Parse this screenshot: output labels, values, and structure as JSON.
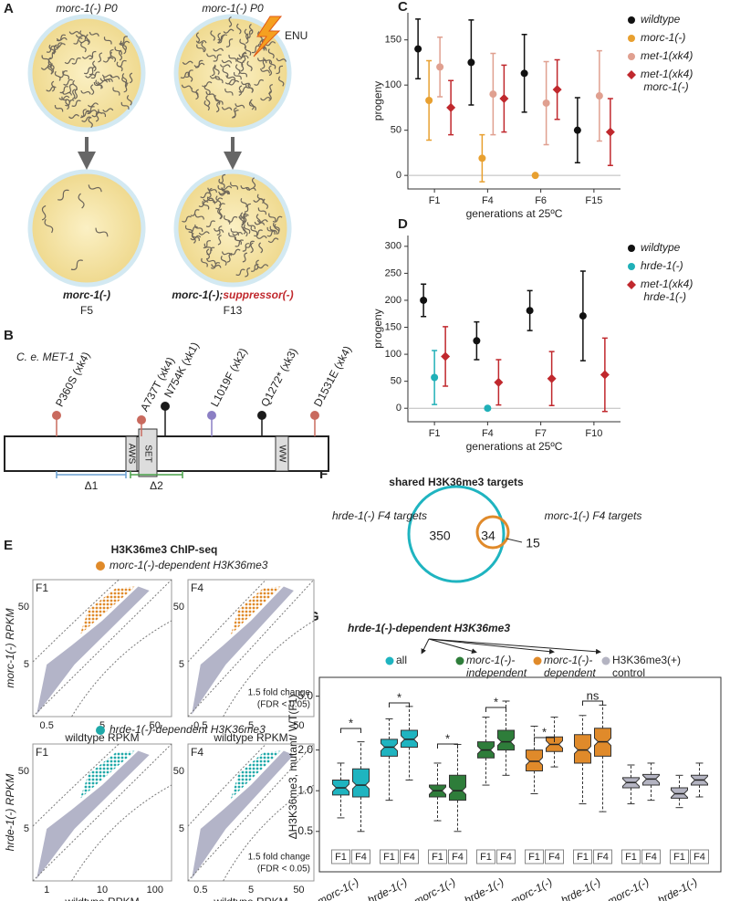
{
  "panel_labels": [
    "A",
    "B",
    "C",
    "D",
    "E",
    "F",
    "G"
  ],
  "panel_a": {
    "left_top": "morc-1(-) P0",
    "right_top": "morc-1(-) P0",
    "mutagen": "ENU",
    "left_bottom": [
      "morc-1(-)",
      "F5"
    ],
    "right_bottom": [
      "morc-1(-);",
      "suppressor(-)",
      "F13"
    ]
  },
  "panel_b": {
    "protein": "C. e. MET-1",
    "mutations": [
      {
        "label": "P360S (xk4)",
        "color": "#c96a5e"
      },
      {
        "label": "A737T (xk4)",
        "color": "#c96a5e"
      },
      {
        "label": "N754K (xk1)",
        "color": "#1a1a1a"
      },
      {
        "label": "L1019F (xk2)",
        "color": "#8b7fc4"
      },
      {
        "label": "Q1272* (xk3)",
        "color": "#1a1a1a"
      },
      {
        "label": "D1531E (xk4)",
        "color": "#c96a5e"
      }
    ],
    "domains": [
      "AWS",
      "SET",
      "WW"
    ],
    "deletions": [
      {
        "label": "Δ1",
        "color": "#6a9fd0"
      },
      {
        "label": "Δ2",
        "color": "#4aa24a"
      }
    ]
  },
  "panel_e": {
    "title": "H3K36me3 ChIP-seq",
    "x_label": "wildtype RPKM",
    "note": [
      "1.5 fold change",
      "(FDR < 0.05)"
    ],
    "rows": [
      {
        "subtitle": "morc-1(-)-dependent H3K36me3",
        "color": "#e08a2a",
        "y_label": "morc-1(-) RPKM",
        "plots": [
          {
            "generation": "F1",
            "xticks": [
              "0.5",
              "5",
              "50"
            ],
            "yticks": [
              "5",
              "50"
            ]
          },
          {
            "generation": "F4",
            "xticks": [
              "0.5",
              "5",
              "50"
            ],
            "yticks": [
              "5",
              "50"
            ]
          }
        ]
      },
      {
        "subtitle": "hrde-1(-)-dependent H3K36me3",
        "color": "#1fa9a9",
        "y_label": "hrde-1(-) RPKM",
        "plots": [
          {
            "generation": "F1",
            "xticks": [
              "1",
              "10",
              "100"
            ],
            "yticks": [
              "5",
              "50"
            ]
          },
          {
            "generation": "F4",
            "xticks": [
              "0.5",
              "5",
              "50"
            ],
            "yticks": [
              "5",
              "50"
            ]
          }
        ]
      }
    ]
  },
  "panel_f": {
    "title": "shared H3K36me3 targets",
    "left": "hrde-1(-) F4 targets",
    "right": "morc-1(-) F4 targets",
    "counts": [
      "350",
      "34",
      "15"
    ]
  },
  "chart_data": [
    {
      "type": "dot",
      "categories": [
        "F1",
        "F4",
        "F6",
        "F15"
      ],
      "x_label": "generations at 25ºC",
      "y_label": "progeny",
      "ylim": [
        -15,
        180
      ],
      "yticks": [
        0,
        50,
        100,
        150
      ],
      "series": [
        {
          "name": "wildtype",
          "color": "#111111",
          "marker": "circle",
          "values": [
            140,
            125,
            113,
            50
          ],
          "errors": [
            33,
            47,
            43,
            36
          ]
        },
        {
          "name": "morc-1(-)",
          "color": "#e8a030",
          "marker": "circle",
          "values": [
            83,
            19,
            0,
            null
          ],
          "errors": [
            44,
            26,
            0,
            null
          ]
        },
        {
          "name": "met-1(xk4)",
          "color": "#e0a090",
          "marker": "circle",
          "values": [
            120,
            90,
            80,
            88
          ],
          "errors": [
            33,
            45,
            46,
            50
          ]
        },
        {
          "name": "met-1(xk4); morc-1(-)",
          "color": "#c0282d",
          "marker": "diamond",
          "values": [
            75,
            85,
            95,
            48
          ],
          "errors": [
            30,
            37,
            33,
            37
          ]
        }
      ]
    },
    {
      "type": "dot",
      "categories": [
        "F1",
        "F4",
        "F7",
        "F10"
      ],
      "x_label": "generations at 25ºC",
      "y_label": "progeny",
      "ylim": [
        -25,
        320
      ],
      "yticks": [
        0,
        50,
        100,
        150,
        200,
        250,
        300
      ],
      "series": [
        {
          "name": "wildtype",
          "color": "#111111",
          "marker": "circle",
          "values": [
            200,
            125,
            181,
            171
          ],
          "errors": [
            30,
            35,
            37,
            83
          ]
        },
        {
          "name": "hrde-1(-)",
          "color": "#20b0b8",
          "marker": "circle",
          "values": [
            57,
            0,
            null,
            null
          ],
          "errors": [
            50,
            0,
            null,
            null
          ]
        },
        {
          "name": "met-1(xk4); hrde-1(-)",
          "color": "#c0282d",
          "marker": "diamond",
          "values": [
            96,
            48,
            55,
            62
          ],
          "errors": [
            55,
            42,
            50,
            68
          ]
        }
      ]
    },
    {
      "type": "box",
      "title": "hrde-1(-)-dependent H3K36me3",
      "y_label": "ΔH3K36me3, mutant/ WT(F1)",
      "yscale": "log",
      "ylim": [
        0.42,
        5.9
      ],
      "yticks": [
        0.5,
        {
          "value": 1,
          "label": "1.0"
        },
        {
          "value": 2,
          "label": "2.0"
        },
        {
          "value": 5,
          "label": "5.0"
        }
      ],
      "categories": [
        "morc-1(-)",
        "hrde-1(-)"
      ],
      "subcategories": [
        "F1",
        "F4"
      ],
      "annotations": [
        "*",
        "*",
        "*",
        "*",
        "*",
        "ns"
      ],
      "series": [
        {
          "name": "all",
          "color": "#1fb4c0",
          "boxes": [
            {
              "low": 0.63,
              "q1": 0.93,
              "median": 1.05,
              "q3": 1.2,
              "high": 1.6
            },
            {
              "low": 0.5,
              "q1": 0.9,
              "median": 1.1,
              "q3": 1.45,
              "high": 2.3
            },
            {
              "low": 0.85,
              "q1": 1.8,
              "median": 2.1,
              "q3": 2.4,
              "high": 3.4
            },
            {
              "low": 1.2,
              "q1": 2.1,
              "median": 2.4,
              "q3": 2.8,
              "high": 4.2
            }
          ]
        },
        {
          "name": "morc-1(-)- independent",
          "color": "#2e7d3a",
          "boxes": [
            {
              "low": 0.6,
              "q1": 0.9,
              "median": 1.0,
              "q3": 1.1,
              "high": 1.6
            },
            {
              "low": 0.5,
              "q1": 0.85,
              "median": 1.0,
              "q3": 1.3,
              "high": 2.2
            },
            {
              "low": 1.1,
              "q1": 1.75,
              "median": 2.0,
              "q3": 2.3,
              "high": 3.5
            },
            {
              "low": 1.3,
              "q1": 2.0,
              "median": 2.3,
              "q3": 2.8,
              "high": 4.6
            }
          ]
        },
        {
          "name": "morc-1(-)- dependent",
          "color": "#e08a2a",
          "boxes": [
            {
              "low": 0.95,
              "q1": 1.4,
              "median": 1.65,
              "q3": 2.0,
              "high": 3.0
            },
            {
              "low": 1.5,
              "q1": 1.95,
              "median": 2.2,
              "q3": 2.5,
              "high": 3.5
            },
            {
              "low": 0.8,
              "q1": 1.6,
              "median": 2.0,
              "q3": 2.6,
              "high": 3.6
            },
            {
              "low": 0.7,
              "q1": 1.8,
              "median": 2.3,
              "q3": 2.9,
              "high": 4.3
            }
          ]
        },
        {
          "name": "H3K36me3(+) control",
          "color": "#b4b4c2",
          "boxes": [
            {
              "low": 0.8,
              "q1": 1.05,
              "median": 1.15,
              "q3": 1.25,
              "high": 1.55
            },
            {
              "low": 0.85,
              "q1": 1.1,
              "median": 1.22,
              "q3": 1.32,
              "high": 1.6
            },
            {
              "low": 0.75,
              "q1": 0.88,
              "median": 0.95,
              "q3": 1.05,
              "high": 1.3
            },
            {
              "low": 0.9,
              "q1": 1.1,
              "median": 1.2,
              "q3": 1.3,
              "high": 1.6
            }
          ]
        }
      ]
    }
  ]
}
